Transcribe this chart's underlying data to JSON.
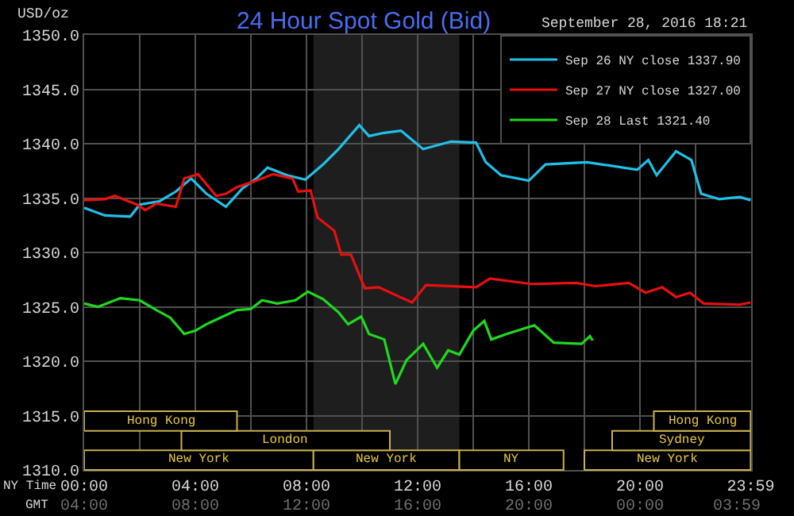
{
  "chart_data": {
    "type": "line",
    "title": "24 Hour Spot Gold (Bid)",
    "subtitle": "September 28, 2016 18:21",
    "ylabel": "USD/oz",
    "xlabel": "NY Time",
    "annotations": [
      "GMT",
      "04:00",
      "08:00",
      "12:00",
      "16:00",
      "20:00",
      "00:00",
      "03:59"
    ],
    "xlim": [
      0,
      24
    ],
    "ylim": [
      1310,
      1350
    ],
    "xticks": [
      {
        "value": 0,
        "label": "00:00"
      },
      {
        "value": 2,
        "label": null
      },
      {
        "value": 4,
        "label": "04:00"
      },
      {
        "value": 6,
        "label": null
      },
      {
        "value": 8,
        "label": "08:00"
      },
      {
        "value": 10,
        "label": null
      },
      {
        "value": 12,
        "label": "12:00"
      },
      {
        "value": 14,
        "label": null
      },
      {
        "value": 16,
        "label": "16:00"
      },
      {
        "value": 18,
        "label": null
      },
      {
        "value": 20,
        "label": "20:00"
      },
      {
        "value": 22,
        "label": null
      },
      {
        "value": 23.983,
        "label": "23:59"
      }
    ],
    "yticks": [
      {
        "value": 1310,
        "label": "1310.0"
      },
      {
        "value": 1315,
        "label": "1315.0"
      },
      {
        "value": 1320,
        "label": "1320.0"
      },
      {
        "value": 1325,
        "label": "1325.0"
      },
      {
        "value": 1330,
        "label": "1330.0"
      },
      {
        "value": 1335,
        "label": "1335.0"
      },
      {
        "value": 1340,
        "label": "1340.0"
      },
      {
        "value": 1345,
        "label": "1345.0"
      },
      {
        "value": 1350,
        "label": "1350.0"
      }
    ],
    "grid": true,
    "legend": "top right",
    "marker": "none",
    "line_style": "solid",
    "series": [
      {
        "name": "Sep 26 NY close 1337.90",
        "color": "#20c0e8",
        "x": [
          0,
          0.75,
          1.66,
          2.0,
          2.7,
          3.3,
          3.85,
          4.4,
          5.1,
          5.7,
          6.2,
          6.6,
          7.3,
          7.96,
          8.6,
          9.15,
          9.9,
          10.25,
          10.8,
          11.4,
          12.2,
          13.2,
          14.1,
          14.45,
          15.0,
          16.0,
          16.6,
          18.1,
          19.9,
          20.3,
          20.6,
          21.3,
          21.85,
          22.2,
          22.85,
          23.6,
          23.983
        ],
        "values": [
          1334.1,
          1333.4,
          1333.3,
          1334.4,
          1334.7,
          1335.6,
          1336.8,
          1335.4,
          1334.2,
          1335.9,
          1336.8,
          1337.8,
          1337.1,
          1336.7,
          1338.1,
          1339.5,
          1341.7,
          1340.7,
          1341.0,
          1341.2,
          1339.5,
          1340.2,
          1340.1,
          1338.3,
          1337.1,
          1336.6,
          1338.1,
          1338.3,
          1337.6,
          1338.5,
          1337.1,
          1339.3,
          1338.5,
          1335.4,
          1334.9,
          1335.1,
          1334.8
        ]
      },
      {
        "name": "Sep 27 NY close 1327.00",
        "color": "#e81010",
        "x": [
          0,
          0.75,
          1.1,
          1.9,
          2.2,
          2.6,
          3.3,
          3.6,
          4.1,
          4.75,
          5.1,
          5.5,
          6.2,
          6.8,
          7.5,
          7.7,
          8.15,
          8.4,
          9.0,
          9.25,
          9.6,
          10.1,
          10.6,
          11.8,
          12.3,
          14.1,
          14.6,
          16.1,
          17.7,
          18.4,
          19.6,
          20.2,
          20.8,
          21.3,
          21.8,
          22.3,
          23.6,
          23.983
        ],
        "values": [
          1334.8,
          1334.9,
          1335.2,
          1334.4,
          1333.9,
          1334.5,
          1334.2,
          1336.8,
          1337.2,
          1335.2,
          1335.4,
          1336.0,
          1336.6,
          1337.2,
          1336.8,
          1335.6,
          1335.7,
          1333.2,
          1332.0,
          1329.8,
          1329.8,
          1326.7,
          1326.8,
          1325.4,
          1327.0,
          1326.8,
          1327.6,
          1327.1,
          1327.2,
          1326.9,
          1327.2,
          1326.3,
          1326.8,
          1325.9,
          1326.3,
          1325.3,
          1325.2,
          1325.4
        ]
      },
      {
        "name": "Sep 28 Last 1321.40",
        "color": "#20d820",
        "x": [
          0,
          0.5,
          1.3,
          2.0,
          2.6,
          3.1,
          3.6,
          4.0,
          4.4,
          4.9,
          5.5,
          6.0,
          6.4,
          6.95,
          7.6,
          8.05,
          8.6,
          9.15,
          9.5,
          9.97,
          10.25,
          10.8,
          11.2,
          11.6,
          12.2,
          12.7,
          13.1,
          13.5,
          14.0,
          14.4,
          14.65,
          15.2,
          16.2,
          16.9,
          17.9,
          18.2,
          18.3
        ],
        "values": [
          1325.3,
          1325.0,
          1325.8,
          1325.6,
          1324.7,
          1324.0,
          1322.5,
          1322.8,
          1323.4,
          1324.0,
          1324.7,
          1324.8,
          1325.6,
          1325.3,
          1325.6,
          1326.4,
          1325.7,
          1324.5,
          1323.4,
          1324.1,
          1322.5,
          1322.0,
          1317.9,
          1320.1,
          1321.6,
          1319.4,
          1321.0,
          1320.6,
          1322.8,
          1323.7,
          1322.0,
          1322.5,
          1323.3,
          1321.7,
          1321.6,
          1322.3,
          1321.9
        ]
      }
    ],
    "bands": [
      {
        "axis": "x",
        "from": 8.25,
        "to": 13.5,
        "label": null,
        "color": "#1e1e1e"
      },
      {
        "axis": "x",
        "from": 0,
        "to": 8.25,
        "label": "New York",
        "color": "#c8b050"
      },
      {
        "axis": "x",
        "from": 8.25,
        "to": 13.5,
        "label": "New York",
        "color": "#c8b050"
      },
      {
        "axis": "x",
        "from": 13.5,
        "to": 17.25,
        "label": "NY",
        "color": "#c8b050"
      },
      {
        "axis": "x",
        "from": 18,
        "to": 23.983,
        "label": "New York",
        "color": "#c8b050"
      },
      {
        "axis": "x",
        "from": 3.5,
        "to": 11,
        "label": "London",
        "color": "#c8b050"
      },
      {
        "axis": "x",
        "from": 19,
        "to": 23.983,
        "label": "Sydney",
        "color": "#c8b050"
      },
      {
        "axis": "x",
        "from": 0,
        "to": 5.5,
        "label": "Hong Kong",
        "color": "#c8b050"
      },
      {
        "axis": "x",
        "from": 20.5,
        "to": 23.983,
        "label": "Hong Kong",
        "color": "#c8b050"
      }
    ]
  }
}
